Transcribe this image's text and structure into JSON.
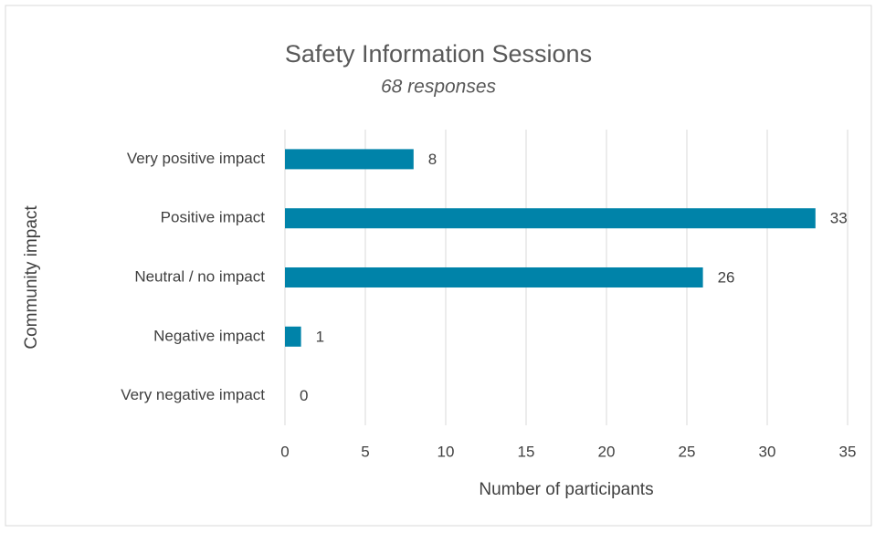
{
  "chart_data": {
    "type": "bar",
    "orientation": "horizontal",
    "title": "Safety Information Sessions",
    "subtitle": "68 responses",
    "categories": [
      "Very positive impact",
      "Positive impact",
      "Neutral / no impact",
      "Negative impact",
      "Very negative impact"
    ],
    "values": [
      8,
      33,
      26,
      1,
      0
    ],
    "color": "#0083a9",
    "xlabel": "Number of participants",
    "ylabel": "Community impact",
    "xlim": [
      0,
      35
    ],
    "xticks": [
      0,
      5,
      10,
      15,
      20,
      25,
      30,
      35
    ],
    "grid": true
  }
}
